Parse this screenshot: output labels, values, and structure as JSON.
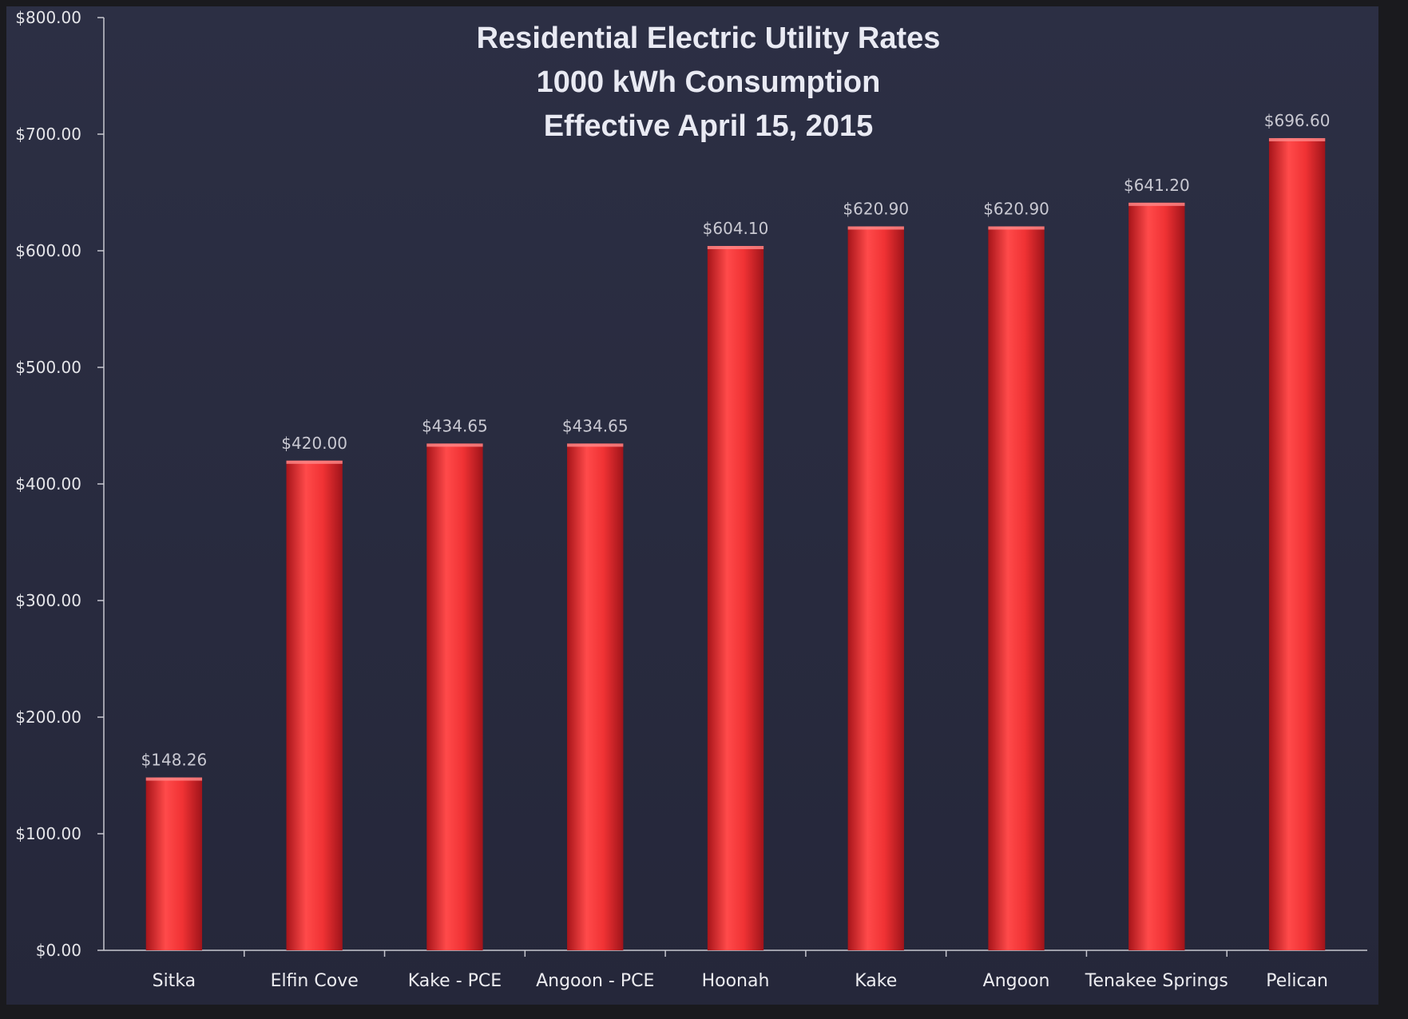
{
  "chart_data": {
    "type": "bar",
    "title_lines": [
      "Residential Electric Utility Rates",
      "1000 kWh Consumption",
      "Effective April 15, 2015"
    ],
    "xlabel": "",
    "ylabel": "",
    "ylim": [
      0,
      800
    ],
    "y_ticks": [
      0,
      100,
      200,
      300,
      400,
      500,
      600,
      700,
      800
    ],
    "y_tick_labels": [
      "$0.00",
      "$100.00",
      "$200.00",
      "$300.00",
      "$400.00",
      "$500.00",
      "$600.00",
      "$700.00",
      "$800.00"
    ],
    "categories": [
      "Sitka",
      "Elfin Cove",
      "Kake - PCE",
      "Angoon - PCE",
      "Hoonah",
      "Kake",
      "Angoon",
      "Tenakee Springs",
      "Pelican"
    ],
    "values": [
      148.26,
      420.0,
      434.65,
      434.65,
      604.1,
      620.9,
      620.9,
      641.2,
      696.6
    ],
    "data_labels": [
      "$148.26",
      "$420.00",
      "$434.65",
      "$434.65",
      "$604.10",
      "$620.90",
      "$620.90",
      "$641.20",
      "$696.60"
    ],
    "grid": false,
    "legend": "none",
    "colors": {
      "background": "#282a3d",
      "bar": "#e0262a",
      "bar_highlight": "#ff5050",
      "axis": "#c8c8d0",
      "text": "#e6e6ea",
      "highlight_label": "#d9262a"
    },
    "highlight_label_index": 0
  }
}
